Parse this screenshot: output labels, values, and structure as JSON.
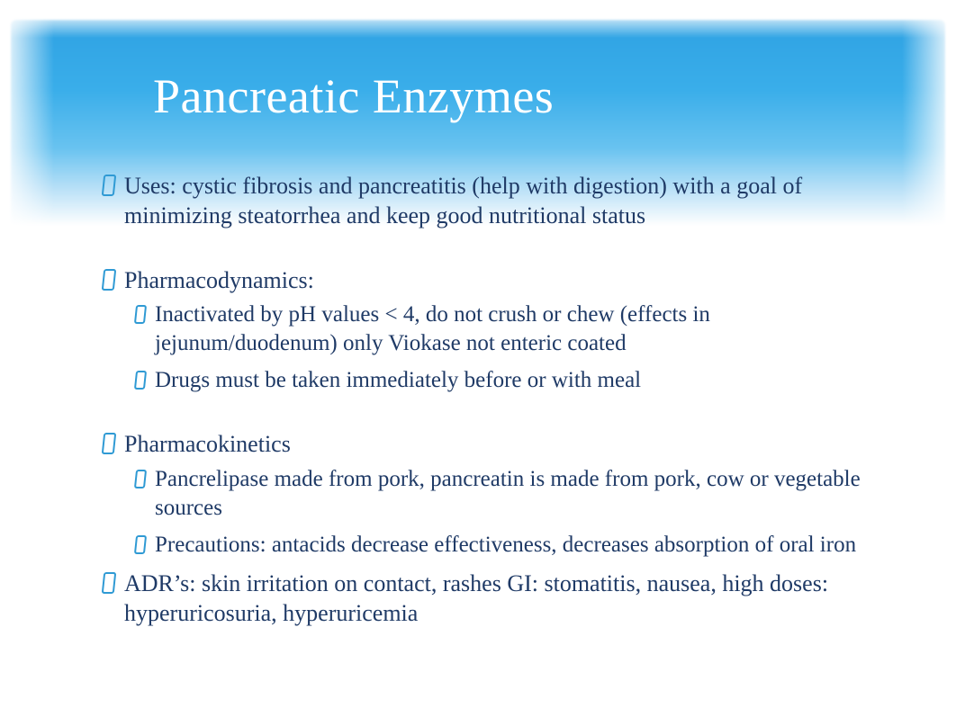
{
  "slide": {
    "title": "Pancreatic Enzymes",
    "title_color": "#ffffff",
    "title_fontsize": 54,
    "text_color": "#1f3a66",
    "bullet_border_color": "#2f9ad4",
    "banner_gradient_top": "#2fa2e3",
    "banner_gradient_mid": "#69c3f0",
    "banner_gradient_bottom": "#ffffff",
    "background_color": "#ffffff",
    "body_fontsize": 26,
    "sub_fontsize": 25,
    "bullets": [
      {
        "text": "Uses: cystic fibrosis and pancreatitis (help with digestion) with a goal of minimizing steatorrhea and keep good nutritional status",
        "gap_before": false,
        "children": []
      },
      {
        "text": "Pharmacodynamics:",
        "gap_before": true,
        "children": [
          {
            "text": "Inactivated by pH values < 4, do not crush or chew (effects in jejunum/duodenum) only Viokase not enteric coated"
          },
          {
            "text": "Drugs must be taken immediately before or with meal"
          }
        ]
      },
      {
        "text": "Pharmacokinetics",
        "gap_before": true,
        "children": [
          {
            "text": "Pancrelipase made from pork, pancreatin is made from pork, cow or vegetable sources"
          },
          {
            "text": "Precautions: antacids decrease effectiveness, decreases absorption of oral iron"
          }
        ]
      },
      {
        "text": "ADR’s: skin irritation on contact, rashes GI: stomatitis, nausea, high doses: hyperuricosuria, hyperuricemia",
        "gap_before": false,
        "children": []
      }
    ]
  }
}
